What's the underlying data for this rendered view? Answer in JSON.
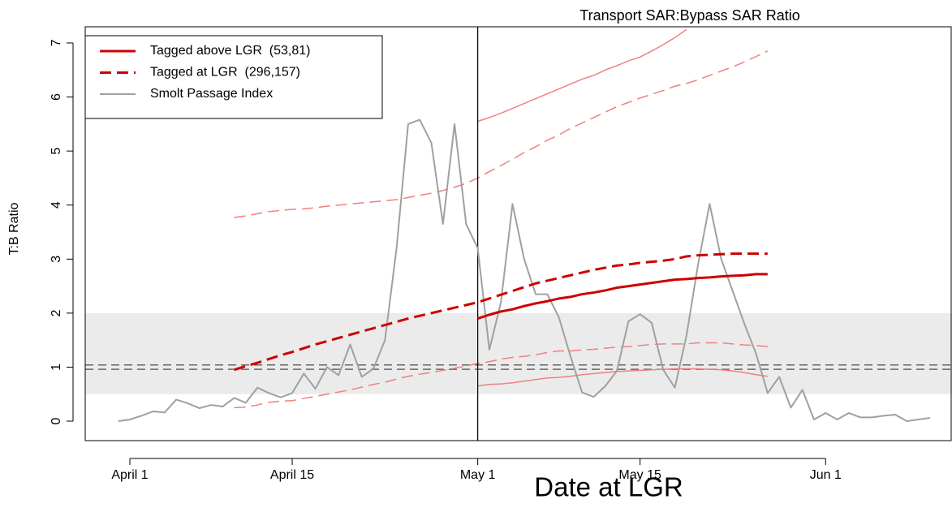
{
  "chart_data": {
    "type": "line",
    "title": "Transport SAR:Bypass SAR Ratio",
    "x_label": "Date at LGR",
    "y_label": "T:B Ratio",
    "xlim": [
      -3.85,
      70.9
    ],
    "ylim": [
      -0.36,
      7.3
    ],
    "xticks": [
      {
        "value": 0,
        "label": "April 1"
      },
      {
        "value": 14,
        "label": "April 15"
      },
      {
        "value": 30,
        "label": "May 1"
      },
      {
        "value": 44,
        "label": "May 15"
      },
      {
        "value": 60,
        "label": "Jun 1"
      }
    ],
    "yticks": [
      0,
      1,
      2,
      3,
      4,
      5,
      6,
      7
    ],
    "shade_band": [
      0.5,
      2
    ],
    "shade_color": "#ebebeb",
    "hlines": [
      1.04,
      0.96
    ],
    "vlines": [
      30
    ],
    "legend_position": "upper left",
    "series": [
      {
        "name": "Tagged above LGR  (53,81)",
        "color": "#cc0000",
        "dashed": false,
        "width": 3,
        "x": [
          30,
          31,
          32,
          33,
          34,
          35,
          36,
          37,
          38,
          39,
          40,
          41,
          42,
          43,
          44,
          45,
          46,
          47,
          48,
          49,
          50,
          51,
          52,
          53,
          54,
          55
        ],
        "values": [
          1.9,
          1.97,
          2.03,
          2.07,
          2.13,
          2.18,
          2.22,
          2.27,
          2.3,
          2.35,
          2.38,
          2.42,
          2.47,
          2.5,
          2.53,
          2.56,
          2.59,
          2.62,
          2.63,
          2.65,
          2.66,
          2.68,
          2.69,
          2.7,
          2.72,
          2.72
        ]
      },
      {
        "name": "Tagged at LGR  (296,157)",
        "color": "#cc0000",
        "dashed": true,
        "width": 3,
        "x": [
          9,
          10,
          11,
          12,
          13,
          14,
          15,
          16,
          17,
          18,
          19,
          20,
          21,
          22,
          23,
          24,
          25,
          26,
          27,
          28,
          29,
          30,
          31,
          32,
          33,
          34,
          35,
          36,
          37,
          38,
          39,
          40,
          41,
          42,
          43,
          44,
          45,
          46,
          47,
          48,
          49,
          50,
          51,
          52,
          53,
          54,
          55
        ],
        "values": [
          0.95,
          1.02,
          1.08,
          1.15,
          1.22,
          1.28,
          1.35,
          1.42,
          1.48,
          1.54,
          1.6,
          1.66,
          1.72,
          1.78,
          1.84,
          1.9,
          1.95,
          2.0,
          2.05,
          2.1,
          2.15,
          2.2,
          2.27,
          2.34,
          2.41,
          2.48,
          2.55,
          2.6,
          2.65,
          2.7,
          2.75,
          2.8,
          2.84,
          2.88,
          2.9,
          2.93,
          2.95,
          2.97,
          3.0,
          3.05,
          3.07,
          3.08,
          3.09,
          3.1,
          3.1,
          3.1,
          3.1
        ]
      },
      {
        "name": "Smolt Passage Index",
        "color": "#a0a0a0",
        "dashed": false,
        "width": 2,
        "x": [
          -1,
          0,
          1,
          2,
          3,
          4,
          5,
          6,
          7,
          8,
          9,
          10,
          11,
          12,
          13,
          14,
          15,
          16,
          17,
          18,
          19,
          20,
          21,
          22,
          23,
          24,
          25,
          26,
          27,
          28,
          29,
          30,
          31,
          32,
          33,
          34,
          35,
          36,
          37,
          38,
          39,
          40,
          41,
          42,
          43,
          44,
          45,
          46,
          47,
          48,
          49,
          50,
          51,
          52,
          53,
          54,
          55,
          56,
          57,
          58,
          59,
          60,
          61,
          62,
          63,
          64,
          65,
          66,
          67,
          68,
          69
        ],
        "values": [
          0.0,
          0.03,
          0.1,
          0.18,
          0.16,
          0.4,
          0.33,
          0.24,
          0.3,
          0.27,
          0.43,
          0.34,
          0.62,
          0.52,
          0.44,
          0.52,
          0.88,
          0.6,
          1.0,
          0.85,
          1.42,
          0.82,
          0.97,
          1.5,
          3.2,
          5.5,
          5.58,
          5.15,
          3.65,
          5.5,
          3.65,
          3.2,
          1.32,
          2.2,
          4.02,
          3.0,
          2.35,
          2.35,
          1.92,
          1.2,
          0.53,
          0.45,
          0.65,
          0.93,
          1.85,
          1.98,
          1.82,
          0.95,
          0.62,
          1.58,
          2.9,
          4.02,
          3.0,
          2.4,
          1.8,
          1.25,
          0.52,
          0.82,
          0.25,
          0.58,
          0.03,
          0.15,
          0.03,
          0.15,
          0.07,
          0.07,
          0.1,
          0.12,
          0.0,
          0.03,
          0.06
        ]
      }
    ],
    "bands": [
      {
        "color": "#f08080",
        "dashed": false,
        "width": 1.5,
        "x": [
          30,
          31,
          32,
          33,
          34,
          35,
          36,
          37,
          38,
          39,
          40,
          41,
          42,
          43,
          44,
          45,
          46,
          47,
          48
        ],
        "values": [
          5.55,
          5.62,
          5.7,
          5.79,
          5.88,
          5.97,
          6.06,
          6.15,
          6.24,
          6.33,
          6.4,
          6.5,
          6.58,
          6.67,
          6.74,
          6.85,
          6.97,
          7.1,
          7.25
        ]
      },
      {
        "color": "#f08080",
        "dashed": false,
        "width": 1.5,
        "x": [
          30,
          31,
          32,
          33,
          34,
          35,
          36,
          37,
          38,
          39,
          40,
          41,
          42,
          43,
          44,
          45,
          46,
          47,
          48,
          49,
          50,
          51,
          52,
          53,
          54,
          55
        ],
        "values": [
          0.65,
          0.68,
          0.69,
          0.71,
          0.74,
          0.77,
          0.8,
          0.81,
          0.83,
          0.86,
          0.88,
          0.9,
          0.92,
          0.93,
          0.94,
          0.95,
          0.96,
          0.97,
          0.97,
          0.97,
          0.96,
          0.95,
          0.93,
          0.9,
          0.86,
          0.83
        ]
      },
      {
        "color": "#f08080",
        "dashed": true,
        "width": 1.5,
        "x": [
          9,
          10,
          11,
          12,
          13,
          14,
          15,
          16,
          17,
          18,
          19,
          20,
          21,
          22,
          23,
          24,
          25,
          26,
          27,
          28,
          29,
          30,
          31,
          32,
          33,
          34,
          35,
          36,
          37,
          38,
          39,
          40,
          41,
          42,
          43,
          44,
          45,
          46,
          47,
          48,
          49,
          50,
          51,
          52,
          53,
          54,
          55
        ],
        "values": [
          3.77,
          3.8,
          3.84,
          3.88,
          3.9,
          3.92,
          3.93,
          3.95,
          3.98,
          4.0,
          4.02,
          4.04,
          4.06,
          4.08,
          4.1,
          4.14,
          4.18,
          4.22,
          4.27,
          4.33,
          4.4,
          4.5,
          4.62,
          4.73,
          4.85,
          4.97,
          5.08,
          5.2,
          5.3,
          5.42,
          5.52,
          5.62,
          5.72,
          5.82,
          5.9,
          5.98,
          6.05,
          6.12,
          6.2,
          6.25,
          6.32,
          6.4,
          6.48,
          6.56,
          6.65,
          6.75,
          6.85
        ]
      },
      {
        "color": "#f08080",
        "dashed": true,
        "width": 1.5,
        "x": [
          9,
          10,
          11,
          12,
          13,
          14,
          15,
          16,
          17,
          18,
          19,
          20,
          21,
          22,
          23,
          24,
          25,
          26,
          27,
          28,
          29,
          30,
          31,
          32,
          33,
          34,
          35,
          36,
          37,
          38,
          39,
          40,
          41,
          42,
          43,
          44,
          45,
          46,
          47,
          48,
          49,
          50,
          51,
          52,
          53,
          54,
          55
        ],
        "values": [
          0.25,
          0.26,
          0.3,
          0.35,
          0.37,
          0.38,
          0.42,
          0.46,
          0.5,
          0.54,
          0.58,
          0.63,
          0.68,
          0.72,
          0.78,
          0.83,
          0.87,
          0.9,
          0.94,
          0.98,
          1.02,
          1.07,
          1.1,
          1.15,
          1.18,
          1.2,
          1.23,
          1.27,
          1.3,
          1.3,
          1.32,
          1.33,
          1.35,
          1.37,
          1.38,
          1.4,
          1.42,
          1.43,
          1.43,
          1.43,
          1.45,
          1.45,
          1.45,
          1.43,
          1.41,
          1.4,
          1.38
        ]
      }
    ]
  }
}
